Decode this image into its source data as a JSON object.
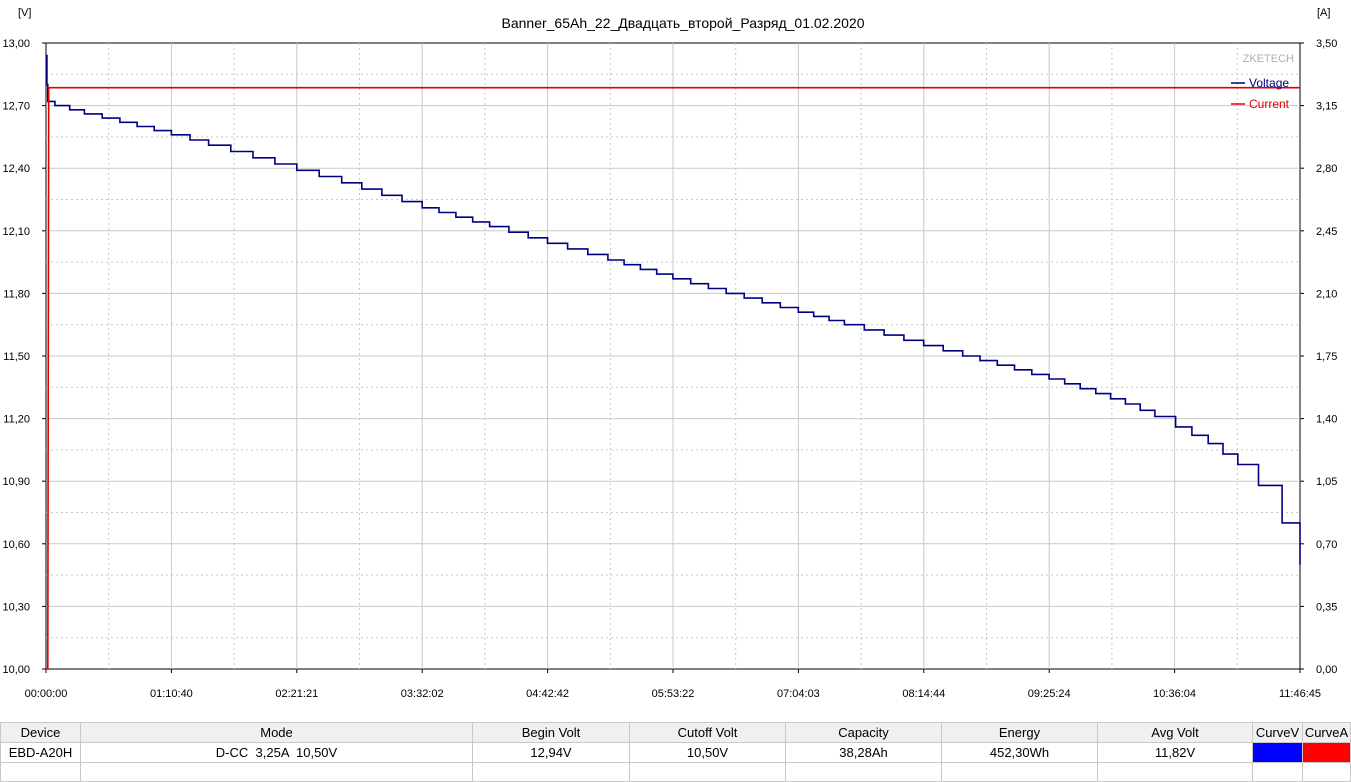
{
  "chart_data": {
    "type": "line",
    "title": "Banner_65Ah_22_Двадцать_второй_Разряд_01.02.2020",
    "watermark": "ZKETECH",
    "y_left_unit": "[V]",
    "y_right_unit": "[A]",
    "x_ticks": [
      "00:00:00",
      "01:10:40",
      "02:21:21",
      "03:32:02",
      "04:42:42",
      "05:53:22",
      "07:04:03",
      "08:14:44",
      "09:25:24",
      "10:36:04",
      "11:46:45"
    ],
    "x_range_seconds": [
      0,
      42405
    ],
    "y_left_ticks": [
      "10,00",
      "10,30",
      "10,60",
      "10,90",
      "11,20",
      "11,50",
      "11,80",
      "12,10",
      "12,40",
      "12,70",
      "13,00"
    ],
    "y_left_range": [
      10.0,
      13.0
    ],
    "y_right_ticks": [
      "0,00",
      "0,35",
      "0,70",
      "1,05",
      "1,40",
      "1,75",
      "2,10",
      "2,45",
      "2,80",
      "3,15",
      "3,50"
    ],
    "y_right_range": [
      0.0,
      3.5
    ],
    "grid": true,
    "legend_position": "top-right",
    "series": [
      {
        "name": "Voltage",
        "axis": "left",
        "color": "#000080",
        "x": [
          0,
          30,
          60,
          300,
          1300,
          2500,
          4240,
          5500,
          7000,
          8480,
          10000,
          12720,
          15000,
          16960,
          19000,
          21200,
          23000,
          25440,
          27000,
          29680,
          31000,
          33920,
          35500,
          36500,
          37500,
          38200,
          39300,
          40300,
          41000,
          41800,
          42405
        ],
        "y": [
          12.94,
          12.8,
          12.72,
          12.7,
          12.66,
          12.62,
          12.56,
          12.51,
          12.45,
          12.39,
          12.33,
          12.21,
          12.12,
          12.04,
          11.96,
          11.87,
          11.8,
          11.71,
          11.65,
          11.55,
          11.5,
          11.39,
          11.32,
          11.27,
          11.21,
          11.16,
          11.08,
          10.98,
          10.88,
          10.7,
          10.5
        ]
      },
      {
        "name": "Current",
        "axis": "right",
        "color": "#e00000",
        "x": [
          0,
          60,
          90,
          42405
        ],
        "y": [
          0.0,
          0.0,
          3.25,
          3.25
        ]
      }
    ]
  },
  "table": {
    "headers": [
      "Device",
      "Mode",
      "Begin Volt",
      "Cutoff Volt",
      "Capacity",
      "Energy",
      "Avg Volt",
      "CurveV",
      "CurveA"
    ],
    "row": [
      "EBD-A20H",
      "D-CC  3,25A  10,50V",
      "12,94V",
      "10,50V",
      "38,28Ah",
      "452,30Wh",
      "11,82V"
    ],
    "curve_v_color": "#0000ff",
    "curve_a_color": "#ff0000"
  }
}
